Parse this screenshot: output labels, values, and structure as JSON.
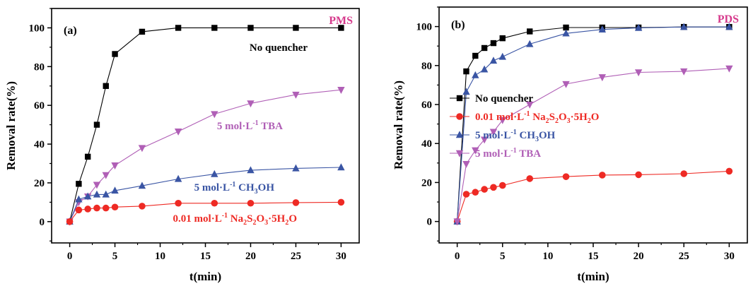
{
  "colors": {
    "black": "#000000",
    "red": "#ee2a24",
    "blue": "#3a55a4",
    "purple": "#b05fb6",
    "corner": "#d63a8c"
  },
  "chart_data": [
    {
      "type": "line",
      "panel_label": "(a)",
      "corner_label": "PMS",
      "xlabel": "t(min)",
      "ylabel": "Removal rate(%)",
      "xlim": [
        -2,
        32
      ],
      "ylim": [
        -11,
        110
      ],
      "xticks": [
        "0",
        "5",
        "10",
        "15",
        "20",
        "25",
        "30"
      ],
      "yticks": [
        "0",
        "20",
        "40",
        "60",
        "80",
        "100"
      ],
      "x": [
        0,
        1,
        2,
        3,
        4,
        5,
        8,
        12,
        16,
        20,
        25,
        30
      ],
      "series": [
        {
          "name": "No quencher",
          "color": "#000000",
          "marker": "square",
          "values": [
            0,
            19.5,
            33.5,
            50,
            70,
            86.5,
            98,
            100,
            100,
            100,
            100,
            100
          ]
        },
        {
          "name": "5 mol·L-1 TBA",
          "color": "#b05fb6",
          "marker": "tri-down",
          "values": [
            0,
            10,
            13,
            19,
            24,
            29,
            38,
            46.5,
            55.5,
            61,
            65.5,
            68
          ]
        },
        {
          "name": "5 mol·L-1 CH3OH",
          "color": "#3a55a4",
          "marker": "tri-up",
          "values": [
            0,
            11.5,
            13,
            14,
            14,
            16,
            18.5,
            22,
            24.5,
            26.5,
            27.5,
            28
          ]
        },
        {
          "name": "0.01 mol·L-1 Na2S2O3·5H2O",
          "color": "#ee2a24",
          "marker": "circle",
          "values": [
            0,
            6,
            6.5,
            7,
            7,
            7.5,
            8,
            9.5,
            9.5,
            9.5,
            9.8,
            10
          ]
        }
      ],
      "annotations": [
        {
          "pre": "No quencher",
          "sup": "",
          "mid": "",
          "subs": [],
          "color": "#000000"
        },
        {
          "pre": "5 mol·L",
          "sup": "-1",
          "mid": " TBA",
          "subs": [],
          "color": "#b05fb6"
        },
        {
          "pre": "5 mol·L",
          "sup": "-1",
          "mid": " CH",
          "subs": [
            [
              "3",
              "OH"
            ]
          ],
          "color": "#3a55a4"
        },
        {
          "pre": "0.01 mol·L",
          "sup": "-1",
          "mid": " Na",
          "subs": [
            [
              "2",
              "S"
            ],
            [
              "2",
              "O"
            ],
            [
              "3",
              "·5H"
            ],
            [
              "2",
              "O"
            ]
          ],
          "color": "#ee2a24"
        }
      ]
    },
    {
      "type": "line",
      "panel_label": "(b)",
      "corner_label": "PDS",
      "xlabel": "t(min)",
      "ylabel": "Removal rate(%)",
      "xlim": [
        -2,
        32
      ],
      "ylim": [
        -11,
        110
      ],
      "xticks": [
        "0",
        "5",
        "10",
        "15",
        "20",
        "25",
        "30"
      ],
      "yticks": [
        "0",
        "20",
        "40",
        "60",
        "80",
        "100"
      ],
      "x": [
        0,
        1,
        2,
        3,
        4,
        5,
        8,
        12,
        16,
        20,
        25,
        30
      ],
      "series": [
        {
          "name": "No quencher",
          "color": "#000000",
          "marker": "square",
          "values": [
            0,
            77,
            85,
            89,
            91.5,
            94,
            97.5,
            99.5,
            99.5,
            99.5,
            99.8,
            99.8
          ]
        },
        {
          "name": "0.01 mol·L-1 Na2S2O3·5H2O",
          "color": "#ee2a24",
          "marker": "circle",
          "values": [
            0,
            14,
            15,
            16.5,
            17.5,
            18.5,
            22,
            23,
            23.8,
            24,
            24.5,
            25.8
          ]
        },
        {
          "name": "5 mol·L-1 CH3OH",
          "color": "#3a55a4",
          "marker": "tri-up",
          "values": [
            0,
            66.5,
            75,
            78,
            82.5,
            84.5,
            91,
            96.5,
            98.5,
            99.3,
            99.8,
            99.8
          ]
        },
        {
          "name": "5 mol·L-1 TBA",
          "color": "#b05fb6",
          "marker": "tri-down",
          "values": [
            0,
            29.5,
            36.5,
            42,
            46,
            52,
            60,
            70.5,
            74,
            76.5,
            77,
            78.5
          ]
        }
      ],
      "legend": [
        {
          "pre": "No quencher",
          "sup": "",
          "mid": "",
          "subs": [],
          "color": "#000000",
          "marker": "square"
        },
        {
          "pre": "0.01 mol·L",
          "sup": "-1",
          "mid": " Na",
          "subs": [
            [
              "2",
              "S"
            ],
            [
              "2",
              "O"
            ],
            [
              "3",
              "·5H"
            ],
            [
              "2",
              "O"
            ]
          ],
          "color": "#ee2a24",
          "marker": "circle"
        },
        {
          "pre": "5 mol·L",
          "sup": "-1",
          "mid": " CH",
          "subs": [
            [
              "3",
              "OH"
            ]
          ],
          "color": "#3a55a4",
          "marker": "tri-up"
        },
        {
          "pre": "5 mol·L",
          "sup": "-1",
          "mid": " TBA",
          "subs": [],
          "color": "#b05fb6",
          "marker": "tri-down"
        }
      ]
    }
  ]
}
